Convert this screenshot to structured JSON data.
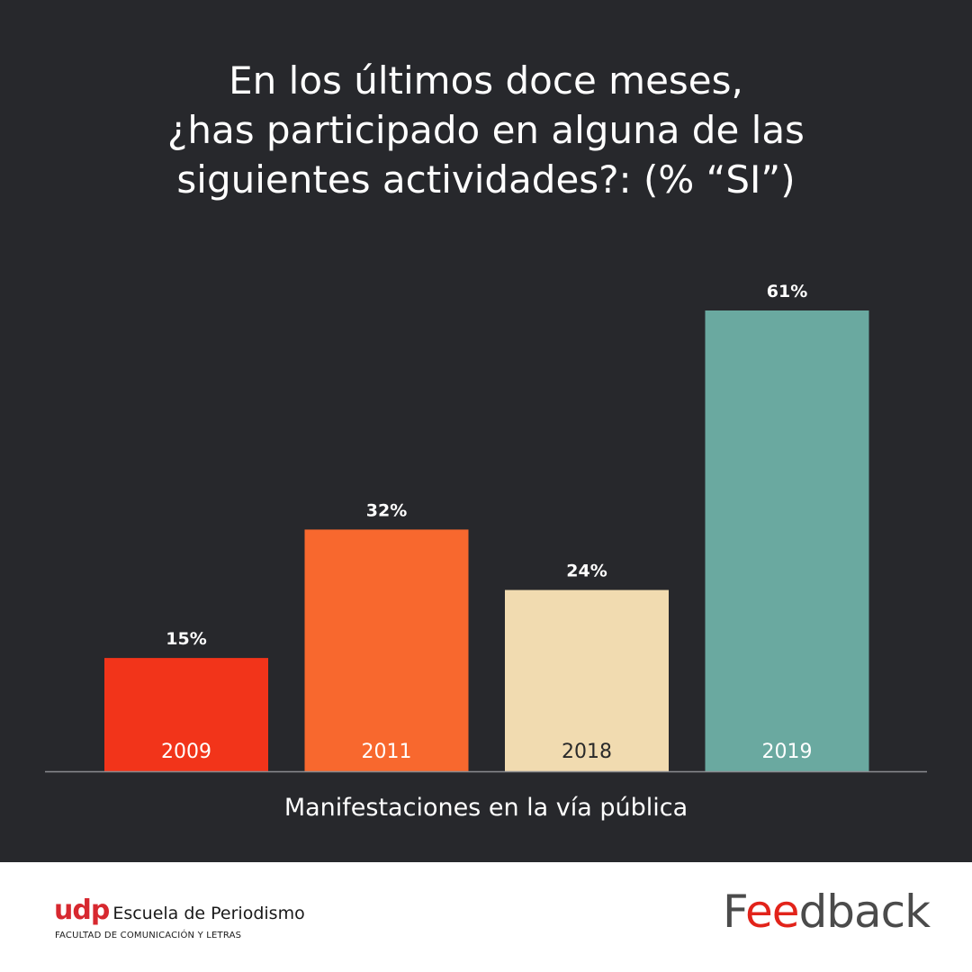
{
  "title_lines": [
    "En los últimos doce meses,",
    "¿has participado en alguna de las",
    "siguientes actividades?:  (% “SI”)"
  ],
  "chart_data": {
    "type": "bar",
    "categories": [
      "2009",
      "2011",
      "2018",
      "2019"
    ],
    "values": [
      15,
      32,
      24,
      61
    ],
    "value_labels": [
      "15%",
      "32%",
      "24%",
      "61%"
    ],
    "colors": [
      "#f2341a",
      "#f8682e",
      "#f1dbb0",
      "#6aa9a0"
    ],
    "category_label_colors": [
      "#ffffff",
      "#ffffff",
      "#2a2a2a",
      "#ffffff"
    ],
    "xlabel": "Manifestaciones en la vía pública",
    "ylabel": "",
    "ylim": [
      0,
      61
    ],
    "grid": false,
    "value_label_position": "above",
    "category_label_position": "inside-bottom"
  },
  "footer": {
    "udp_mark": "udp",
    "udp_name": "Escuela de Periodismo",
    "udp_subtitle": "FACULTAD DE COMUNICACIÓN Y LETRAS",
    "feedback_logo": [
      "F",
      "ee",
      "dback"
    ]
  },
  "colors": {
    "background": "#27282c",
    "axis": "#8a8b90",
    "text": "#ffffff",
    "udp_red": "#d7282f",
    "feedback_red": "#e2231a"
  }
}
